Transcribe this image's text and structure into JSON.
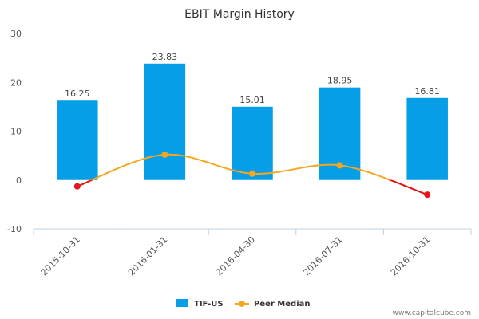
{
  "chart_data": {
    "type": "bar",
    "title": "EBIT Margin History",
    "categories": [
      "2015-10-31",
      "2016-01-31",
      "2016-04-30",
      "2016-07-31",
      "2016-10-31"
    ],
    "ylim": [
      -10,
      30
    ],
    "yticks": [
      -10,
      0,
      10,
      20,
      30
    ],
    "grid": false,
    "legend_position": "bottom",
    "series": [
      {
        "name": "TIF-US",
        "kind": "bar",
        "color": "#069ee6",
        "values": [
          16.25,
          23.83,
          15.01,
          18.95,
          16.81
        ],
        "labels": [
          "16.25",
          "23.83",
          "15.01",
          "18.95",
          "16.81"
        ]
      },
      {
        "name": "Peer Median",
        "kind": "line",
        "color": "#f5a623",
        "negative_color": "#e8141b",
        "smooth": true,
        "values": [
          -1.3,
          5.2,
          1.3,
          3.0,
          -3.0
        ]
      }
    ]
  },
  "watermark": "www.capitalcube.com"
}
